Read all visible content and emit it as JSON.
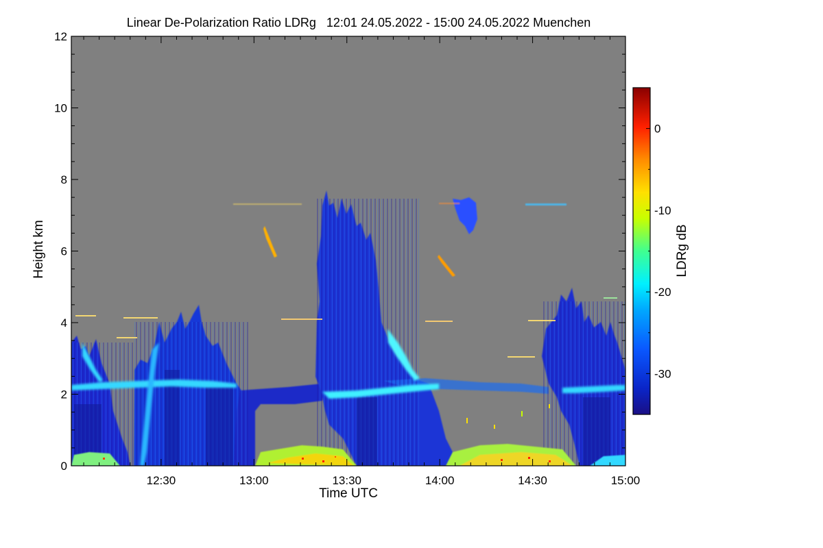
{
  "chart_data": {
    "type": "heatmap",
    "title": "Linear De-Polarization Ratio LDRg   12:01 24.05.2022 - 15:00 24.05.2022 Muenchen",
    "xlabel": "Time UTC",
    "ylabel": "Height km",
    "x_ticks": [
      "12:30",
      "13:00",
      "13:30",
      "14:00",
      "14:30",
      "15:00"
    ],
    "x_tick_minutes": [
      750,
      780,
      810,
      840,
      870,
      900
    ],
    "xlim_minutes": [
      721,
      900
    ],
    "y_ticks": [
      "0",
      "2",
      "4",
      "6",
      "8",
      "10",
      "12"
    ],
    "y_tick_values": [
      0,
      2,
      4,
      6,
      8,
      10,
      12
    ],
    "ylim": [
      0,
      12
    ],
    "colorbar": {
      "label": "LDRg dB",
      "ticks": [
        "0",
        "-10",
        "-20",
        "-30"
      ],
      "tick_values": [
        0,
        -10,
        -20,
        -30
      ],
      "range": [
        -35,
        5
      ],
      "colormap": "rainbow"
    },
    "background_color": "#808080"
  }
}
